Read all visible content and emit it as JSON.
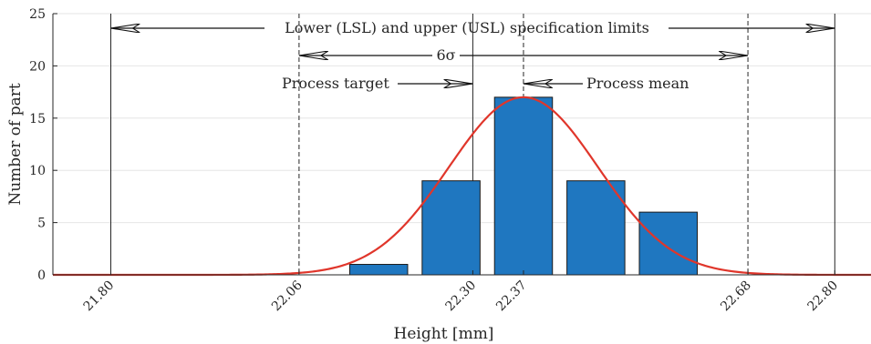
{
  "chart_data": {
    "type": "bar",
    "xlabel": "Height [mm]",
    "ylabel": "Number of part",
    "xlim": [
      21.72,
      22.85
    ],
    "ylim": [
      0,
      25
    ],
    "y_ticks": [
      0,
      5,
      10,
      15,
      20,
      25
    ],
    "x_ticks": [
      {
        "value": 21.8,
        "label": "21.80"
      },
      {
        "value": 22.06,
        "label": "22.06"
      },
      {
        "value": 22.3,
        "label": "22.30"
      },
      {
        "value": 22.37,
        "label": "22.37"
      },
      {
        "value": 22.68,
        "label": "22.68"
      },
      {
        "value": 22.8,
        "label": "22.80"
      }
    ],
    "grid": true,
    "bars": [
      {
        "center": 22.17,
        "width": 0.08,
        "value": 1
      },
      {
        "center": 22.27,
        "width": 0.08,
        "value": 9
      },
      {
        "center": 22.37,
        "width": 0.08,
        "value": 17
      },
      {
        "center": 22.47,
        "width": 0.08,
        "value": 9
      },
      {
        "center": 22.57,
        "width": 0.08,
        "value": 6
      }
    ],
    "bar_color": "#1f77c0",
    "fit_curve": {
      "type": "normal",
      "mean": 22.37,
      "sigma": 0.103,
      "peak": 17,
      "color": "#e0362b"
    },
    "limits": {
      "lsl": 21.8,
      "usl": 22.8,
      "target": 22.3,
      "mean": 22.37,
      "minus3sigma": 22.06,
      "plus3sigma": 22.68
    },
    "annotations": {
      "spec_limits": "Lower (LSL) and upper (USL) specification limits",
      "six_sigma": "6σ",
      "process_target": "Process target",
      "process_mean": "Process mean"
    }
  }
}
